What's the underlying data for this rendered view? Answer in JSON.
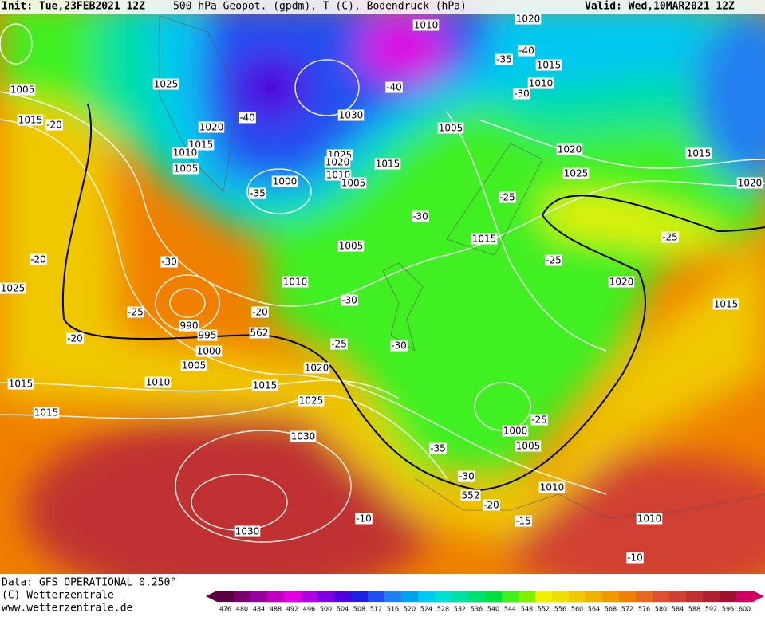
{
  "header": {
    "init": "Init: Tue,23FEB2021 12Z",
    "field": "500 hPa Geopot. (gpdm), T (C), Bodendruck (hPa)",
    "valid": "Valid: Wed,10MAR2021 12Z"
  },
  "footer": {
    "source": "Data: GFS OPERATIONAL 0.250°",
    "copyright": "(C) Wetterzentrale",
    "url": "www.wetterzentrale.de"
  },
  "colorbar": {
    "values": [
      476,
      480,
      484,
      488,
      492,
      496,
      500,
      504,
      508,
      512,
      516,
      520,
      524,
      528,
      532,
      536,
      540,
      544,
      548,
      552,
      556,
      560,
      564,
      568,
      572,
      576,
      580,
      584,
      588,
      592,
      596,
      600
    ],
    "colors": [
      "#5a0040",
      "#7a0070",
      "#9a00a0",
      "#c000c0",
      "#e000e0",
      "#b000e0",
      "#8000e0",
      "#5000e0",
      "#2020e0",
      "#2050f0",
      "#2080f0",
      "#00a0f0",
      "#00c8f0",
      "#00e0d0",
      "#00e0a0",
      "#00e070",
      "#00e040",
      "#40f020",
      "#80f000",
      "#f0f000",
      "#f0e000",
      "#f0c800",
      "#f0b000",
      "#f09800",
      "#f08000",
      "#e86820",
      "#e05030",
      "#d04030",
      "#c03030",
      "#b02030",
      "#a01030",
      "#d00060"
    ]
  },
  "map_labels": [
    "1010",
    "1020",
    "1015",
    "1010",
    "-40",
    "-35",
    "-30",
    "-40",
    "1005",
    "1030",
    "1025",
    "1020",
    "1015",
    "1010",
    "1005",
    "1000",
    "-35",
    "-40",
    "1020",
    "1015",
    "1010",
    "1005",
    "1025",
    "1005",
    "1015",
    "-20",
    "1020",
    "1025",
    "1015",
    "1020",
    "-25",
    "-30",
    "1015",
    "-25",
    "1020",
    "-25",
    "1015",
    "1005",
    "1010",
    "-30",
    "-30",
    "-20",
    "1025",
    "-25",
    "-20",
    "990",
    "995",
    "1000",
    "1005",
    "-20",
    "-25",
    "-30",
    "1020",
    "1010",
    "1015",
    "1015",
    "1015",
    "1025",
    "-25",
    "1000",
    "1005",
    "1030",
    "-35",
    "-30",
    "552",
    "1010",
    "-20",
    "-10",
    "-15",
    "1030",
    "1010",
    "-10",
    "562"
  ]
}
